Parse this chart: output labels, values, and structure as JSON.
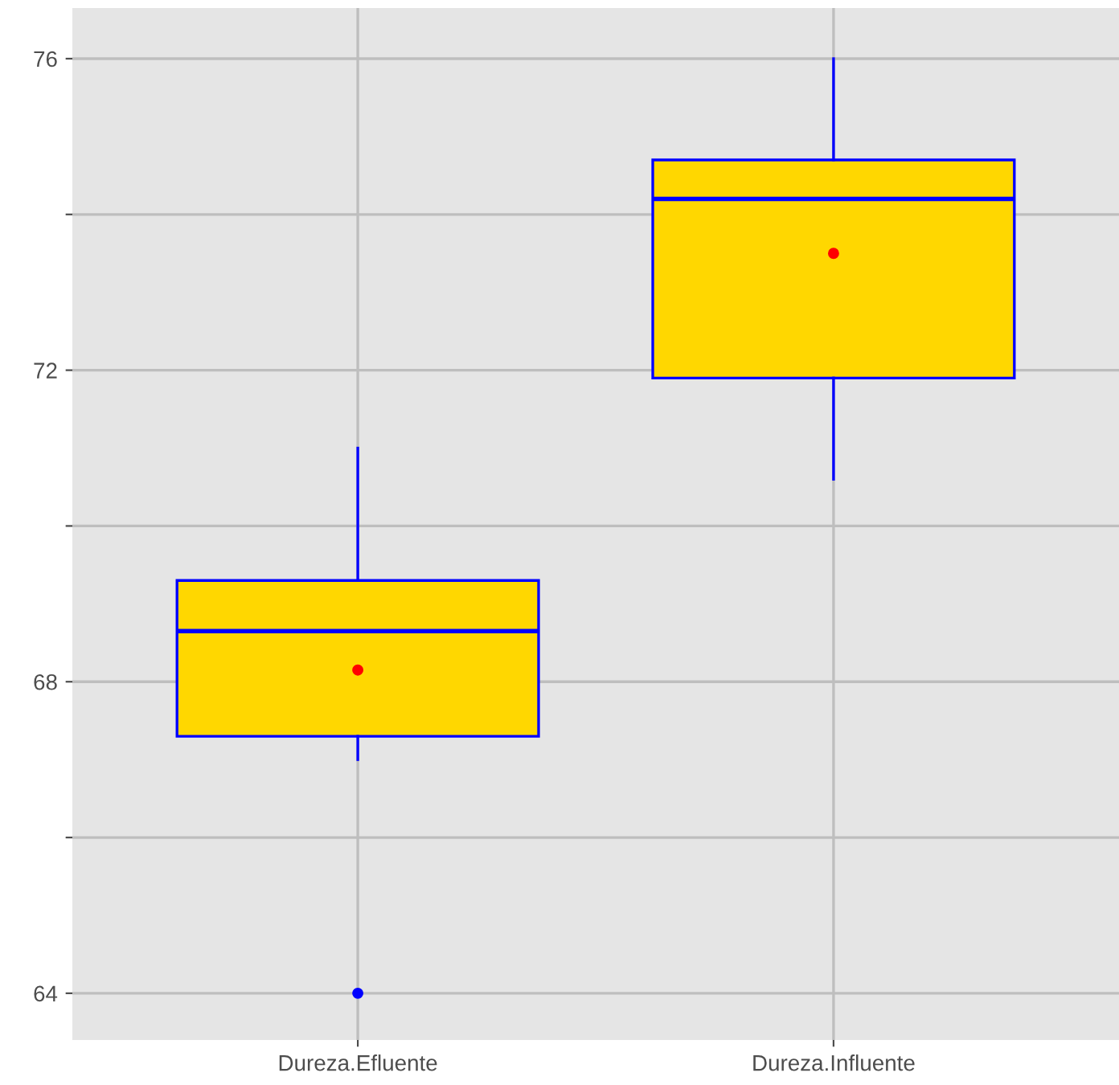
{
  "chart_data": {
    "type": "box",
    "categories": [
      "Dureza.Efluente",
      "Dureza.Influente"
    ],
    "boxes": [
      {
        "low": 67.0,
        "q1": 67.3,
        "median": 68.65,
        "q3": 69.3,
        "high": 71.0,
        "mean": 68.15,
        "outliers": [
          64.0
        ]
      },
      {
        "low": 70.6,
        "q1": 71.9,
        "median": 74.2,
        "q3": 74.7,
        "high": 76.0,
        "mean": 73.5
      }
    ],
    "color": "#ffd700",
    "ylim": [
      63.4,
      76.65
    ],
    "yticks": [
      64,
      {
        "value": 66,
        "label": null
      },
      68,
      {
        "value": 70,
        "label": null
      },
      72,
      {
        "value": 74,
        "label": null
      },
      76
    ],
    "grid": true
  }
}
